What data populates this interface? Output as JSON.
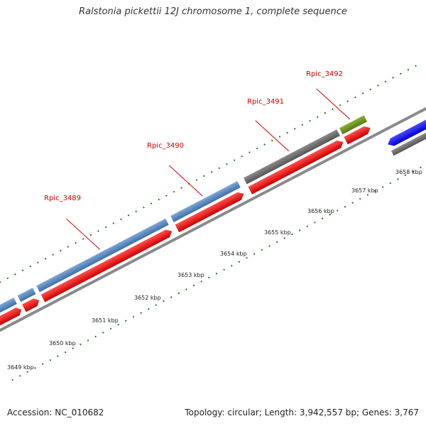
{
  "title": "Ralstonia pickettii 12J chromosome 1, complete sequence",
  "footer": {
    "accession": "Accession: NC_010682",
    "summary": "Topology: circular; Length: 3,942,557 bp; Genes: 3,767"
  },
  "gene_labels": [
    "Rpic_3489",
    "Rpic_3490",
    "Rpic_3491",
    "Rpic_3492"
  ],
  "kbp_ticks": [
    "3649 kbp",
    "3650 kbp",
    "3651 kbp",
    "3652 kbp",
    "3653 kbp",
    "3654 kbp",
    "3655 kbp",
    "3656 kbp",
    "3657 kbp",
    "3658 kbp"
  ],
  "colors": {
    "cds_blue": "#4f83bf",
    "gene_red": "#ff0000",
    "gene_gray": "#6e6e6e",
    "gene_green": "#6b8e23",
    "gene_bright_blue": "#1414ff",
    "tick_green": "#1a7a1a",
    "label_red": "#cc0000",
    "backbone": "#888888"
  }
}
